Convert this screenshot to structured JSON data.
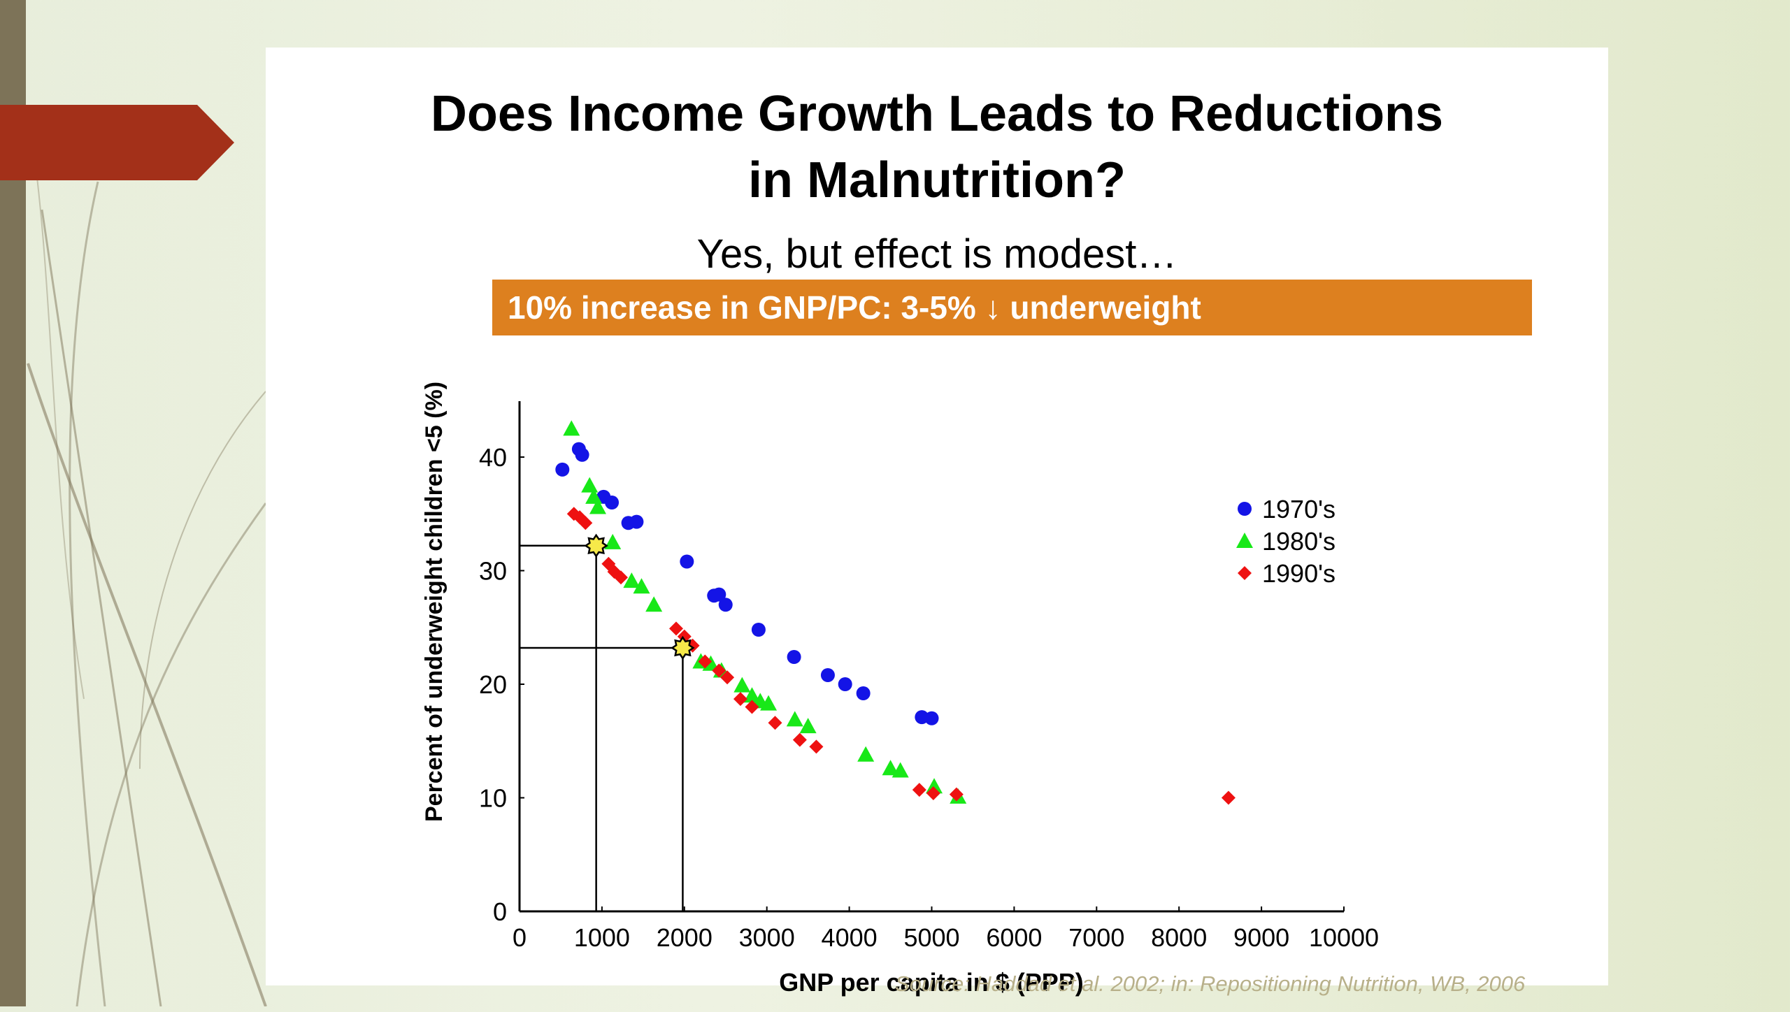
{
  "slide": {
    "title": "Does Income Growth Leads to Reductions\nin Malnutrition?",
    "subtitle": "Yes, but effect is modest…",
    "banner": "10% increase in GNP/PC:  3-5% ↓ underweight",
    "source": "Source: Haddad et al. 2002; in: Repositioning Nutrition, WB, 2006",
    "colors": {
      "banner": "#dd801f",
      "accent_arrow": "#a33019",
      "left_bar": "#7d7358"
    }
  },
  "chart_data": {
    "type": "scatter",
    "title": "",
    "xlabel": "GNP per capita in $ (PPP)",
    "ylabel": "Percent of underweight  children <5 (%)",
    "xlim": [
      0,
      10000
    ],
    "ylim": [
      0,
      40
    ],
    "xticks": [
      0,
      1000,
      2000,
      3000,
      4000,
      5000,
      6000,
      7000,
      8000,
      9000,
      10000
    ],
    "yticks": [
      0,
      10,
      20,
      30,
      40
    ],
    "grid": false,
    "legend_position": "right",
    "series": [
      {
        "name": "1970's",
        "marker": "circle",
        "color": "#1414e6",
        "points": [
          [
            520,
            38.9
          ],
          [
            720,
            40.7
          ],
          [
            760,
            40.2
          ],
          [
            1020,
            36.5
          ],
          [
            1120,
            36.0
          ],
          [
            1320,
            34.2
          ],
          [
            1420,
            34.3
          ],
          [
            2030,
            30.8
          ],
          [
            2360,
            27.8
          ],
          [
            2420,
            27.9
          ],
          [
            2500,
            27.0
          ],
          [
            2900,
            24.8
          ],
          [
            3330,
            22.4
          ],
          [
            3740,
            20.8
          ],
          [
            3950,
            20.0
          ],
          [
            4170,
            19.2
          ],
          [
            4880,
            17.1
          ],
          [
            5000,
            17.0
          ]
        ]
      },
      {
        "name": "1980's",
        "marker": "triangle",
        "color": "#18e818",
        "points": [
          [
            630,
            42.5
          ],
          [
            850,
            37.5
          ],
          [
            900,
            36.5
          ],
          [
            950,
            35.6
          ],
          [
            1130,
            32.5
          ],
          [
            1360,
            29.1
          ],
          [
            1480,
            28.6
          ],
          [
            1630,
            27.0
          ],
          [
            2200,
            22.0
          ],
          [
            2320,
            21.8
          ],
          [
            2450,
            21.2
          ],
          [
            2700,
            19.9
          ],
          [
            2820,
            19.0
          ],
          [
            2920,
            18.5
          ],
          [
            3020,
            18.3
          ],
          [
            3340,
            16.9
          ],
          [
            3500,
            16.3
          ],
          [
            4200,
            13.8
          ],
          [
            4500,
            12.6
          ],
          [
            4620,
            12.4
          ],
          [
            5030,
            11.0
          ],
          [
            5320,
            10.1
          ]
        ]
      },
      {
        "name": "1990's",
        "marker": "diamond",
        "color": "#ee1111",
        "points": [
          [
            660,
            35.0
          ],
          [
            730,
            34.7
          ],
          [
            800,
            34.2
          ],
          [
            1080,
            30.6
          ],
          [
            1150,
            29.9
          ],
          [
            1230,
            29.4
          ],
          [
            1900,
            24.9
          ],
          [
            2000,
            24.2
          ],
          [
            2100,
            23.4
          ],
          [
            2250,
            22.0
          ],
          [
            2420,
            21.2
          ],
          [
            2520,
            20.6
          ],
          [
            2680,
            18.7
          ],
          [
            2820,
            18.0
          ],
          [
            3100,
            16.6
          ],
          [
            3400,
            15.1
          ],
          [
            3600,
            14.5
          ],
          [
            4850,
            10.7
          ],
          [
            5020,
            10.4
          ],
          [
            5300,
            10.3
          ],
          [
            8600,
            10.0
          ]
        ]
      }
    ],
    "highlight_points": [
      [
        930,
        32.2
      ],
      [
        1980,
        23.2
      ]
    ]
  }
}
